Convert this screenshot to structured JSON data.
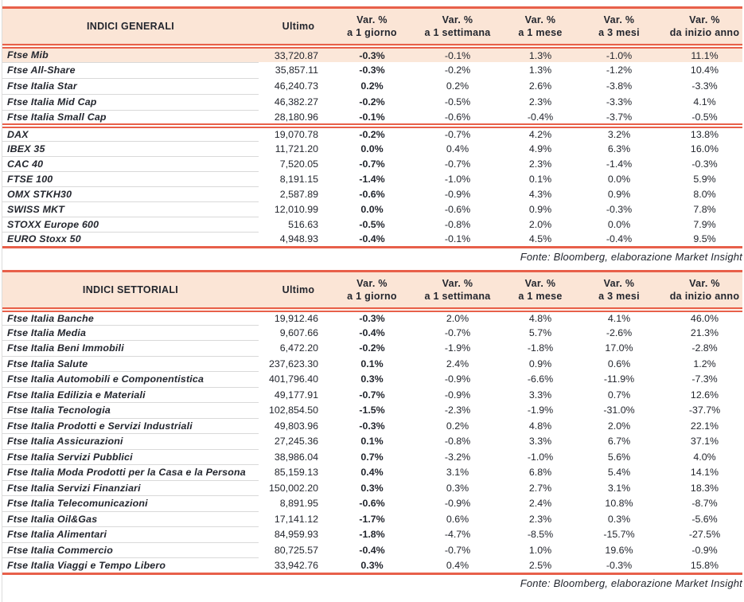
{
  "colors": {
    "accent_line": "#E8604A",
    "header_bg": "#FBE5D6",
    "highlight_row_bg": "#FBE7D9",
    "row_separator": "#D9D9D9",
    "text": "#23262E"
  },
  "tables": [
    {
      "title": "INDICI GENERALI",
      "ultimo_label": "Ultimo",
      "var_cols": [
        {
          "line1": "Var. %",
          "line2": "a 1 giorno"
        },
        {
          "line1": "Var. %",
          "line2": "a 1 settimana"
        },
        {
          "line1": "Var. %",
          "line2": "a 1 mese"
        },
        {
          "line1": "Var. %",
          "line2": "a 3 mesi"
        },
        {
          "line1": "Var. %",
          "line2": "da inizio anno"
        }
      ],
      "source": "Fonte: Bloomberg, elaborazione Market Insight",
      "groups": [
        {
          "rows": [
            {
              "name": "Ftse Mib",
              "ultimo": "33,720.87",
              "vals": [
                "-0.3%",
                "-0.1%",
                "1.3%",
                "-1.0%",
                "11.1%"
              ],
              "highlight": true
            },
            {
              "name": "Ftse All-Share",
              "ultimo": "35,857.11",
              "vals": [
                "-0.3%",
                "-0.2%",
                "1.3%",
                "-1.2%",
                "10.4%"
              ]
            },
            {
              "name": "Ftse Italia Star",
              "ultimo": "46,240.73",
              "vals": [
                "0.2%",
                "0.2%",
                "2.6%",
                "-3.8%",
                "-3.3%"
              ]
            },
            {
              "name": "Ftse Italia Mid Cap",
              "ultimo": "46,382.27",
              "vals": [
                "-0.2%",
                "-0.5%",
                "2.3%",
                "-3.3%",
                "4.1%"
              ]
            },
            {
              "name": "Ftse Italia Small Cap",
              "ultimo": "28,180.96",
              "vals": [
                "-0.1%",
                "-0.6%",
                "-0.4%",
                "-3.7%",
                "-0.5%"
              ]
            }
          ]
        },
        {
          "rows": [
            {
              "name": "DAX",
              "ultimo": "19,070.78",
              "vals": [
                "-0.2%",
                "-0.7%",
                "4.2%",
                "3.2%",
                "13.8%"
              ]
            },
            {
              "name": "IBEX 35",
              "ultimo": "11,721.20",
              "vals": [
                "0.0%",
                "0.4%",
                "4.9%",
                "6.3%",
                "16.0%"
              ]
            },
            {
              "name": "CAC 40",
              "ultimo": "7,520.05",
              "vals": [
                "-0.7%",
                "-0.7%",
                "2.3%",
                "-1.4%",
                "-0.3%"
              ]
            },
            {
              "name": "FTSE 100",
              "ultimo": "8,191.15",
              "vals": [
                "-1.4%",
                "-1.0%",
                "0.1%",
                "0.0%",
                "5.9%"
              ]
            },
            {
              "name": "OMX STKH30",
              "ultimo": "2,587.89",
              "vals": [
                "-0.6%",
                "-0.9%",
                "4.3%",
                "0.9%",
                "8.0%"
              ]
            },
            {
              "name": "SWISS MKT",
              "ultimo": "12,010.99",
              "vals": [
                "0.0%",
                "-0.6%",
                "0.9%",
                "-0.3%",
                "7.8%"
              ]
            },
            {
              "name": "STOXX Europe 600",
              "ultimo": "516.63",
              "vals": [
                "-0.5%",
                "-0.8%",
                "2.0%",
                "0.0%",
                "7.9%"
              ]
            },
            {
              "name": "EURO Stoxx 50",
              "ultimo": "4,948.93",
              "vals": [
                "-0.4%",
                "-0.1%",
                "4.5%",
                "-0.4%",
                "9.5%"
              ]
            }
          ]
        }
      ]
    },
    {
      "title": "INDICI SETTORIALI",
      "ultimo_label": "Ultimo",
      "var_cols": [
        {
          "line1": "Var. %",
          "line2": "a 1 giorno"
        },
        {
          "line1": "Var. %",
          "line2": "a 1 settimana"
        },
        {
          "line1": "Var. %",
          "line2": "a 1 mese"
        },
        {
          "line1": "Var. %",
          "line2": "a 3 mesi"
        },
        {
          "line1": "Var. %",
          "line2": "da inizio anno"
        }
      ],
      "source": "Fonte: Bloomberg, elaborazione Market Insight",
      "groups": [
        {
          "rows": [
            {
              "name": "Ftse Italia Banche",
              "ultimo": "19,912.46",
              "vals": [
                "-0.3%",
                "2.0%",
                "4.8%",
                "4.1%",
                "46.0%"
              ]
            },
            {
              "name": "Ftse Italia Media",
              "ultimo": "9,607.66",
              "vals": [
                "-0.4%",
                "-0.7%",
                "5.7%",
                "-2.6%",
                "21.3%"
              ]
            },
            {
              "name": "Ftse Italia Beni Immobili",
              "ultimo": "6,472.20",
              "vals": [
                "-0.2%",
                "-1.9%",
                "-1.8%",
                "17.0%",
                "-2.8%"
              ]
            },
            {
              "name": "Ftse Italia Salute",
              "ultimo": "237,623.30",
              "vals": [
                "0.1%",
                "2.4%",
                "0.9%",
                "0.6%",
                "1.2%"
              ]
            },
            {
              "name": "Ftse Italia Automobili e Componentistica",
              "ultimo": "401,796.40",
              "vals": [
                "0.3%",
                "-0.9%",
                "-6.6%",
                "-11.9%",
                "-7.3%"
              ]
            },
            {
              "name": "Ftse Italia Edilizia e Materiali",
              "ultimo": "49,177.91",
              "vals": [
                "-0.7%",
                "-0.9%",
                "3.3%",
                "0.7%",
                "12.6%"
              ]
            },
            {
              "name": "Ftse Italia Tecnologia",
              "ultimo": "102,854.50",
              "vals": [
                "-1.5%",
                "-2.3%",
                "-1.9%",
                "-31.0%",
                "-37.7%"
              ]
            },
            {
              "name": "Ftse Italia Prodotti e Servizi Industriali",
              "ultimo": "49,803.96",
              "vals": [
                "-0.3%",
                "0.2%",
                "4.8%",
                "2.0%",
                "22.1%"
              ]
            },
            {
              "name": "Ftse Italia Assicurazioni",
              "ultimo": "27,245.36",
              "vals": [
                "0.1%",
                "-0.8%",
                "3.3%",
                "6.7%",
                "37.1%"
              ]
            },
            {
              "name": "Ftse Italia Servizi Pubblici",
              "ultimo": "38,986.04",
              "vals": [
                "0.7%",
                "-3.2%",
                "-1.0%",
                "5.6%",
                "4.0%"
              ]
            },
            {
              "name": "Ftse Italia Moda Prodotti per la Casa e la Persona",
              "ultimo": "85,159.13",
              "vals": [
                "0.4%",
                "3.1%",
                "6.8%",
                "5.4%",
                "14.1%"
              ]
            },
            {
              "name": "Ftse Italia Servizi Finanziari",
              "ultimo": "150,002.20",
              "vals": [
                "0.3%",
                "0.3%",
                "2.7%",
                "3.1%",
                "18.3%"
              ]
            },
            {
              "name": "Ftse Italia Telecomunicazioni",
              "ultimo": "8,891.95",
              "vals": [
                "-0.6%",
                "-0.9%",
                "2.4%",
                "10.8%",
                "-8.7%"
              ]
            },
            {
              "name": "Ftse Italia Oil&Gas",
              "ultimo": "17,141.12",
              "vals": [
                "-1.7%",
                "0.6%",
                "2.3%",
                "0.3%",
                "-5.6%"
              ]
            },
            {
              "name": "Ftse Italia Alimentari",
              "ultimo": "84,959.93",
              "vals": [
                "-1.8%",
                "-4.7%",
                "-8.5%",
                "-15.7%",
                "-27.5%"
              ]
            },
            {
              "name": "Ftse Italia Commercio",
              "ultimo": "80,725.57",
              "vals": [
                "-0.4%",
                "-0.7%",
                "1.0%",
                "19.6%",
                "-0.9%"
              ]
            },
            {
              "name": "Ftse Italia Viaggi e Tempo Libero",
              "ultimo": "33,942.76",
              "vals": [
                "0.3%",
                "0.4%",
                "2.5%",
                "-0.3%",
                "15.8%"
              ]
            }
          ]
        }
      ]
    }
  ]
}
